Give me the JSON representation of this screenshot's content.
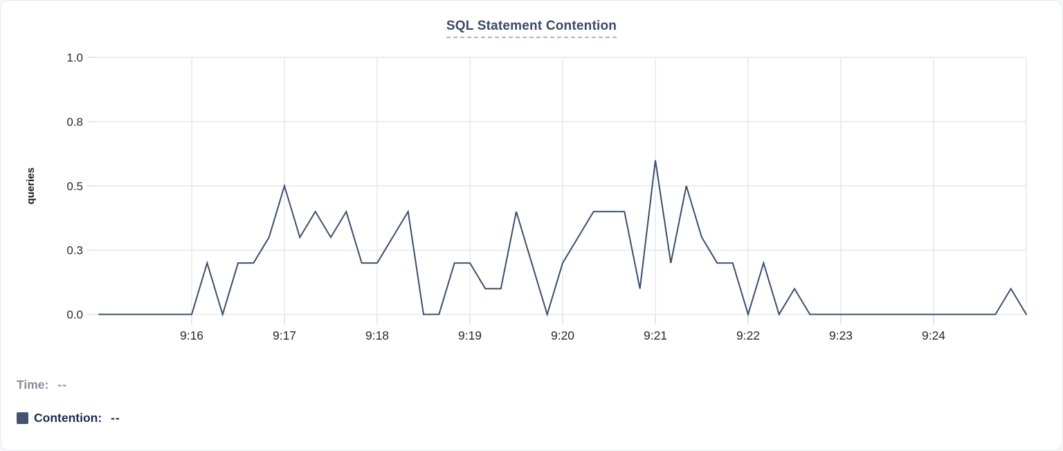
{
  "chart": {
    "title": "SQL Statement Contention"
  },
  "legend": {
    "time_label": "Time:",
    "time_value": "--",
    "contention_label": "Contention:",
    "contention_value": "--",
    "swatch_color": "#44546f"
  },
  "colors": {
    "title": "#394a6b",
    "title_underline": "#a9b0cc",
    "line": "#3b4c6c",
    "gridline": "#e7e7e7",
    "tick_text": "#26292e",
    "time_text": "#848d99",
    "contention_text": "#1e2c52",
    "card_border": "#e6e8ec",
    "card_background": "#ffffff"
  },
  "chart_data": {
    "type": "line",
    "title": "SQL Statement Contention",
    "xlabel": "",
    "ylabel": "queries",
    "ylim": [
      0,
      1
    ],
    "grid": true,
    "legend_position": "bottom-left",
    "y_ticks": [
      {
        "value": 0,
        "label": "0.0"
      },
      {
        "value": 0.25,
        "label": "0.3"
      },
      {
        "value": 0.5,
        "label": "0.5"
      },
      {
        "value": 0.75,
        "label": "0.8"
      },
      {
        "value": 1,
        "label": "1.0"
      }
    ],
    "x_ticks": [
      {
        "t": "9:16:00",
        "label": "9:16"
      },
      {
        "t": "9:17:00",
        "label": "9:17"
      },
      {
        "t": "9:18:00",
        "label": "9:18"
      },
      {
        "t": "9:19:00",
        "label": "9:19"
      },
      {
        "t": "9:20:00",
        "label": "9:20"
      },
      {
        "t": "9:21:00",
        "label": "9:21"
      },
      {
        "t": "9:22:00",
        "label": "9:22"
      },
      {
        "t": "9:23:00",
        "label": "9:23"
      },
      {
        "t": "9:24:00",
        "label": "9:24"
      },
      {
        "t": "9:25:00",
        "label": ""
      }
    ],
    "x": [
      "9:15:00",
      "9:15:10",
      "9:15:20",
      "9:15:30",
      "9:15:40",
      "9:15:50",
      "9:16:00",
      "9:16:10",
      "9:16:20",
      "9:16:30",
      "9:16:40",
      "9:16:50",
      "9:17:00",
      "9:17:10",
      "9:17:20",
      "9:17:30",
      "9:17:40",
      "9:17:50",
      "9:18:00",
      "9:18:10",
      "9:18:20",
      "9:18:30",
      "9:18:40",
      "9:18:50",
      "9:19:00",
      "9:19:10",
      "9:19:20",
      "9:19:30",
      "9:19:40",
      "9:19:50",
      "9:20:00",
      "9:20:10",
      "9:20:20",
      "9:20:30",
      "9:20:40",
      "9:20:50",
      "9:21:00",
      "9:21:10",
      "9:21:20",
      "9:21:30",
      "9:21:40",
      "9:21:50",
      "9:22:00",
      "9:22:10",
      "9:22:20",
      "9:22:30",
      "9:22:40",
      "9:22:50",
      "9:23:00",
      "9:23:10",
      "9:23:20",
      "9:23:30",
      "9:23:40",
      "9:23:50",
      "9:24:00",
      "9:24:10",
      "9:24:20",
      "9:24:30",
      "9:24:40",
      "9:24:50",
      "9:25:00"
    ],
    "series": [
      {
        "name": "Contention",
        "color": "#3b4c6c",
        "values": [
          0,
          0,
          0,
          0,
          0,
          0,
          0,
          0.2,
          0,
          0.2,
          0.2,
          0.3,
          0.5,
          0.3,
          0.4,
          0.3,
          0.4,
          0.2,
          0.2,
          0.3,
          0.4,
          0,
          0,
          0.2,
          0.2,
          0.1,
          0.1,
          0.4,
          0.2,
          0,
          0.2,
          0.3,
          0.4,
          0.4,
          0.4,
          0.1,
          0.6,
          0.2,
          0.5,
          0.3,
          0.2,
          0.2,
          0,
          0.2,
          0,
          0.1,
          0,
          0,
          0,
          0,
          0,
          0,
          0,
          0,
          0,
          0,
          0,
          0,
          0,
          0.1,
          0
        ]
      }
    ]
  }
}
